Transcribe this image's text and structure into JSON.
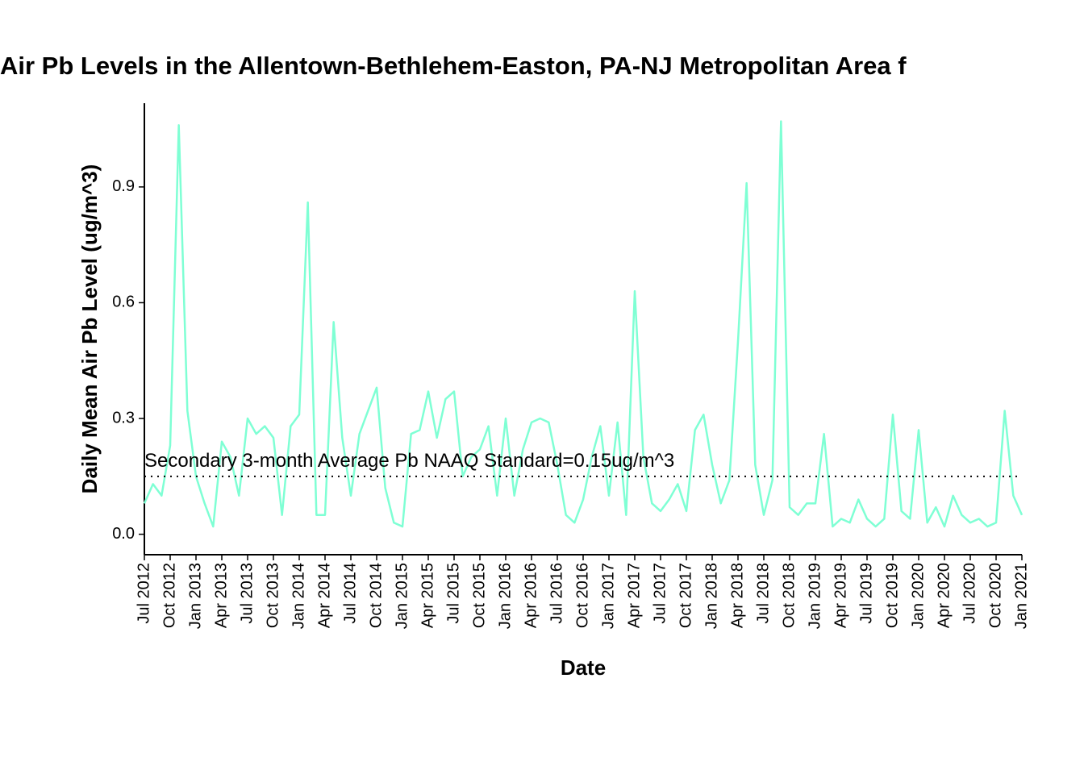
{
  "chart_data": {
    "type": "line",
    "title": "Air Pb Levels in the Allentown-Bethlehem-Easton, PA-NJ Metropolitan Area f",
    "x_label": "Date",
    "y_label": "Daily Mean Air Pb Level (ug/m^3)",
    "x": [
      "2012-07",
      "2012-08",
      "2012-09",
      "2012-10",
      "2012-11",
      "2012-12",
      "2013-01",
      "2013-02",
      "2013-03",
      "2013-04",
      "2013-05",
      "2013-06",
      "2013-07",
      "2013-08",
      "2013-09",
      "2013-10",
      "2013-11",
      "2013-12",
      "2014-01",
      "2014-02",
      "2014-03",
      "2014-04",
      "2014-05",
      "2014-06",
      "2014-07",
      "2014-08",
      "2014-09",
      "2014-10",
      "2014-11",
      "2014-12",
      "2015-01",
      "2015-02",
      "2015-03",
      "2015-04",
      "2015-05",
      "2015-06",
      "2015-07",
      "2015-08",
      "2015-09",
      "2015-10",
      "2015-11",
      "2015-12",
      "2016-01",
      "2016-02",
      "2016-03",
      "2016-04",
      "2016-05",
      "2016-06",
      "2016-07",
      "2016-08",
      "2016-09",
      "2016-10",
      "2016-11",
      "2016-12",
      "2017-01",
      "2017-02",
      "2017-03",
      "2017-04",
      "2017-05",
      "2017-06",
      "2017-07",
      "2017-08",
      "2017-09",
      "2017-10",
      "2017-11",
      "2017-12",
      "2018-01",
      "2018-02",
      "2018-03",
      "2018-04",
      "2018-05",
      "2018-06",
      "2018-07",
      "2018-08",
      "2018-09",
      "2018-10",
      "2018-11",
      "2018-12",
      "2019-01",
      "2019-02",
      "2019-03",
      "2019-04",
      "2019-05",
      "2019-06",
      "2019-07",
      "2019-08",
      "2019-09",
      "2019-10",
      "2019-11",
      "2019-12",
      "2020-01",
      "2020-02",
      "2020-03",
      "2020-04",
      "2020-05",
      "2020-06",
      "2020-07",
      "2020-08",
      "2020-09",
      "2020-10",
      "2020-11",
      "2020-12",
      "2021-01"
    ],
    "series": [
      {
        "name": "Daily Mean Air Pb",
        "color": "#7fffd4",
        "values": [
          0.08,
          0.13,
          0.1,
          0.23,
          1.06,
          0.32,
          0.15,
          0.08,
          0.02,
          0.24,
          0.2,
          0.1,
          0.3,
          0.26,
          0.28,
          0.25,
          0.05,
          0.28,
          0.31,
          0.86,
          0.05,
          0.05,
          0.55,
          0.25,
          0.1,
          0.26,
          0.32,
          0.38,
          0.12,
          0.03,
          0.02,
          0.26,
          0.27,
          0.37,
          0.25,
          0.35,
          0.37,
          0.15,
          0.2,
          0.22,
          0.28,
          0.1,
          0.3,
          0.1,
          0.22,
          0.29,
          0.3,
          0.29,
          0.18,
          0.05,
          0.03,
          0.09,
          0.2,
          0.28,
          0.1,
          0.29,
          0.05,
          0.63,
          0.2,
          0.08,
          0.06,
          0.09,
          0.13,
          0.06,
          0.27,
          0.31,
          0.18,
          0.08,
          0.14,
          0.5,
          0.91,
          0.18,
          0.05,
          0.14,
          1.07,
          0.07,
          0.05,
          0.08,
          0.08,
          0.26,
          0.02,
          0.04,
          0.03,
          0.09,
          0.04,
          0.02,
          0.04,
          0.31,
          0.06,
          0.04,
          0.27,
          0.03,
          0.07,
          0.02,
          0.1,
          0.05,
          0.03,
          0.04,
          0.02,
          0.03,
          0.32,
          0.1,
          0.05
        ]
      }
    ],
    "hline": {
      "value": 0.15,
      "label": "Secondary 3-month Average Pb NAAQ Standard=0.15ug/m^3"
    },
    "xlim": [
      "2012-07",
      "2021-01"
    ],
    "xticks": [
      {
        "value": "2012-07",
        "label": "Jul 2012"
      },
      {
        "value": "2012-10",
        "label": "Oct 2012"
      },
      {
        "value": "2013-01",
        "label": "Jan 2013"
      },
      {
        "value": "2013-04",
        "label": "Apr 2013"
      },
      {
        "value": "2013-07",
        "label": "Jul 2013"
      },
      {
        "value": "2013-10",
        "label": "Oct 2013"
      },
      {
        "value": "2014-01",
        "label": "Jan 2014"
      },
      {
        "value": "2014-04",
        "label": "Apr 2014"
      },
      {
        "value": "2014-07",
        "label": "Jul 2014"
      },
      {
        "value": "2014-10",
        "label": "Oct 2014"
      },
      {
        "value": "2015-01",
        "label": "Jan 2015"
      },
      {
        "value": "2015-04",
        "label": "Apr 2015"
      },
      {
        "value": "2015-07",
        "label": "Jul 2015"
      },
      {
        "value": "2015-10",
        "label": "Oct 2015"
      },
      {
        "value": "2016-01",
        "label": "Jan 2016"
      },
      {
        "value": "2016-04",
        "label": "Apr 2016"
      },
      {
        "value": "2016-07",
        "label": "Jul 2016"
      },
      {
        "value": "2016-10",
        "label": "Oct 2016"
      },
      {
        "value": "2017-01",
        "label": "Jan 2017"
      },
      {
        "value": "2017-04",
        "label": "Apr 2017"
      },
      {
        "value": "2017-07",
        "label": "Jul 2017"
      },
      {
        "value": "2017-10",
        "label": "Oct 2017"
      },
      {
        "value": "2018-01",
        "label": "Jan 2018"
      },
      {
        "value": "2018-04",
        "label": "Apr 2018"
      },
      {
        "value": "2018-07",
        "label": "Jul 2018"
      },
      {
        "value": "2018-10",
        "label": "Oct 2018"
      },
      {
        "value": "2019-01",
        "label": "Jan 2019"
      },
      {
        "value": "2019-04",
        "label": "Apr 2019"
      },
      {
        "value": "2019-07",
        "label": "Jul 2019"
      },
      {
        "value": "2019-10",
        "label": "Oct 2019"
      },
      {
        "value": "2020-01",
        "label": "Jan 2020"
      },
      {
        "value": "2020-04",
        "label": "Apr 2020"
      },
      {
        "value": "2020-07",
        "label": "Jul 2020"
      },
      {
        "value": "2020-10",
        "label": "Oct 2020"
      },
      {
        "value": "2021-01",
        "label": "Jan 2021"
      }
    ],
    "ylim": [
      -0.053,
      1.117
    ],
    "yticks": [
      {
        "value": 0,
        "label": "0.0"
      },
      0.3,
      0.6,
      0.9
    ],
    "grid": false
  }
}
